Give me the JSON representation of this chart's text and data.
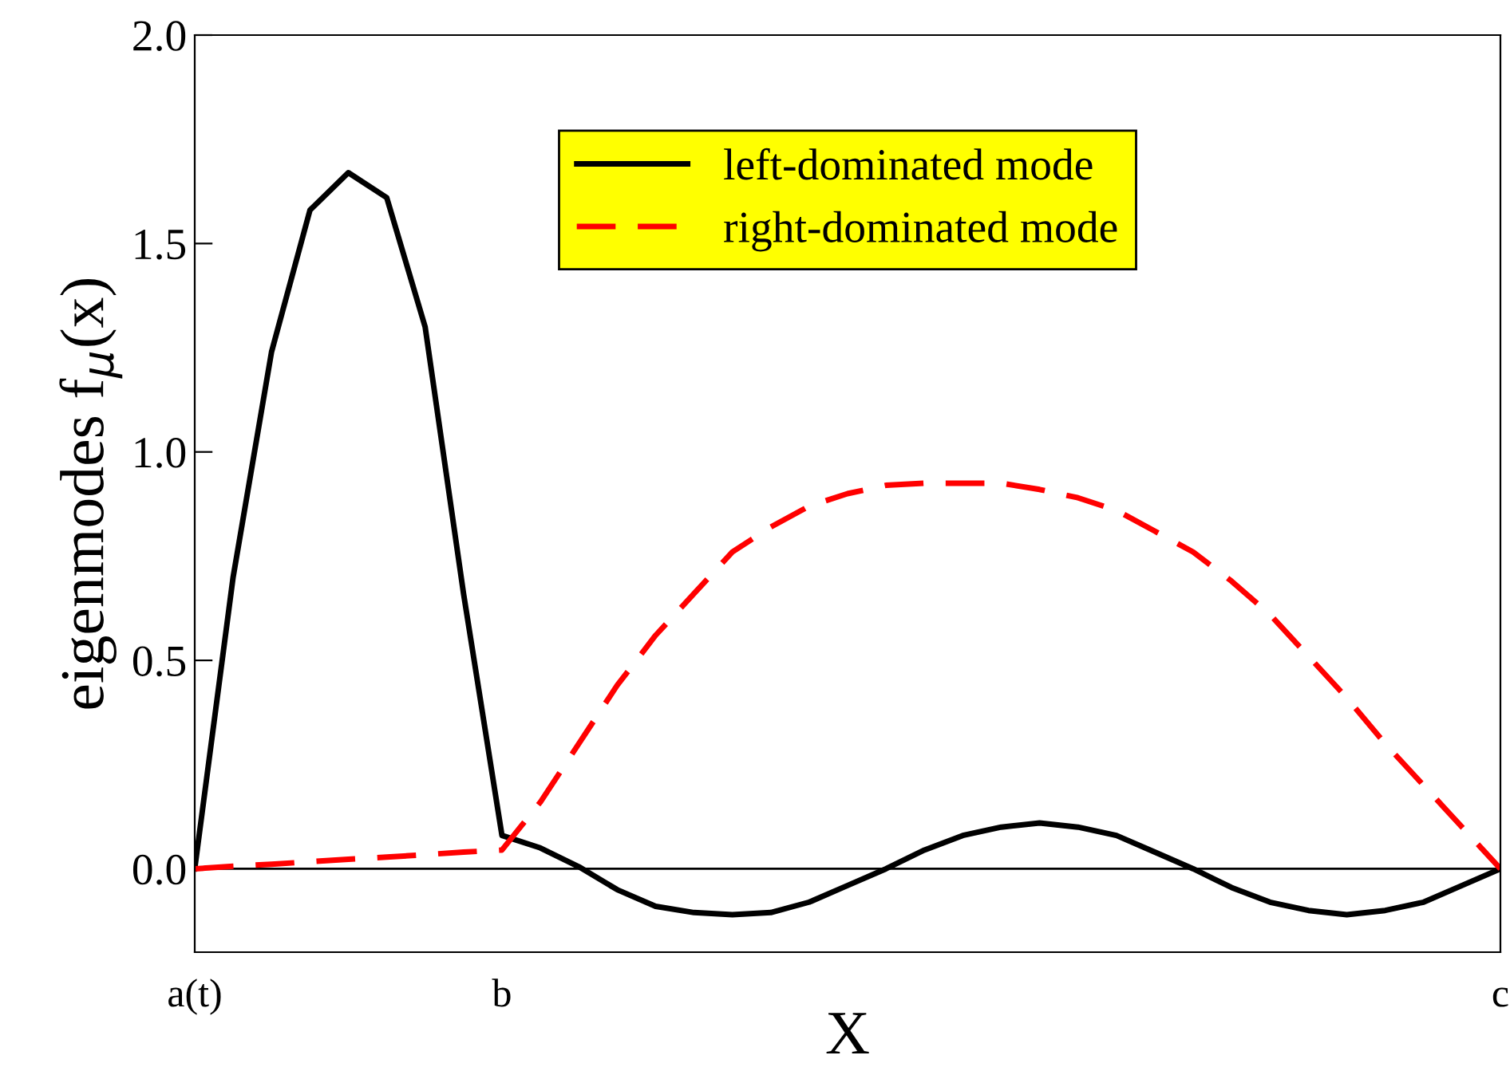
{
  "chart_data": {
    "type": "line",
    "xlabel": "X",
    "ylabel": "eigenmodes f$_{μ}$(x)",
    "categories": [
      "a(t)",
      null,
      null,
      null,
      null,
      null,
      null,
      null,
      "b",
      null,
      null,
      null,
      null,
      null,
      null,
      null,
      null,
      null,
      null,
      null,
      null,
      null,
      null,
      null,
      null,
      null,
      null,
      null,
      null,
      null,
      null,
      null,
      null,
      null,
      "c"
    ],
    "ylim": [
      -0.2,
      2.0
    ],
    "yticks": [
      {
        "value": 0,
        "label": "0.0"
      },
      {
        "value": 0.5,
        "label": "0.5"
      },
      {
        "value": 1,
        "label": "1.0"
      },
      {
        "value": 1.5,
        "label": "1.5"
      },
      {
        "value": 2,
        "label": "2.0"
      }
    ],
    "grid": false,
    "legend": "top",
    "marker": "none",
    "ref_lines": [
      {
        "axis": "y",
        "value": 0,
        "label": null,
        "color": "#000000",
        "line_style": "solid"
      }
    ],
    "series": [
      {
        "name": "left-dominated mode",
        "color": "#000000",
        "line_style": "solid",
        "values": [
          0,
          0.7,
          1.24,
          1.58,
          1.67,
          1.61,
          1.3,
          0.66,
          0.08,
          0.05,
          0.005,
          -0.05,
          -0.09,
          -0.105,
          -0.11,
          -0.105,
          -0.08,
          -0.04,
          0,
          0.045,
          0.08,
          0.1,
          0.11,
          0.1,
          0.08,
          0.04,
          0,
          -0.045,
          -0.08,
          -0.1,
          -0.11,
          -0.1,
          -0.08,
          -0.04,
          0
        ]
      },
      {
        "name": "right-dominated mode",
        "color": "#ff0000",
        "line_style": "dashed",
        "values": [
          0,
          0.006,
          0.011,
          0.017,
          0.023,
          0.028,
          0.034,
          0.04,
          0.045,
          0.16,
          0.3,
          0.44,
          0.56,
          0.66,
          0.76,
          0.82,
          0.87,
          0.9,
          0.92,
          0.925,
          0.925,
          0.925,
          0.91,
          0.89,
          0.86,
          0.81,
          0.76,
          0.69,
          0.61,
          0.51,
          0.41,
          0.3,
          0.2,
          0.1,
          0
        ]
      }
    ]
  }
}
